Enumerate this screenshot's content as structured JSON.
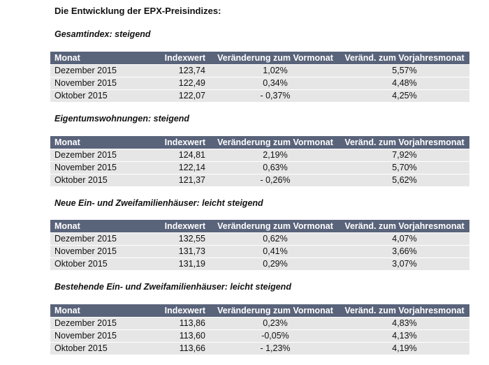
{
  "title": "Die Entwicklung der EPX-Preisindizes:",
  "columns": {
    "month": "Monat",
    "index": "Indexwert",
    "mom": "Veränderung zum Vormonat",
    "yoy": "Veränd. zum Vorjahresmonat"
  },
  "sections": [
    {
      "heading": "Gesamtindex: steigend",
      "rows": [
        {
          "month": "Dezember 2015",
          "index": "123,74",
          "mom": "1,02%",
          "yoy": "5,57%"
        },
        {
          "month": "November 2015",
          "index": "122,49",
          "mom": "0,34%",
          "yoy": "4,48%"
        },
        {
          "month": "Oktober 2015",
          "index": "122,07",
          "mom": "- 0,37%",
          "yoy": "4,25%"
        }
      ]
    },
    {
      "heading": "Eigentumswohnungen: steigend",
      "rows": [
        {
          "month": "Dezember 2015",
          "index": "124,81",
          "mom": "2,19%",
          "yoy": "7,92%"
        },
        {
          "month": "November 2015",
          "index": "122,14",
          "mom": "0,63%",
          "yoy": "5,70%"
        },
        {
          "month": "Oktober 2015",
          "index": "121,37",
          "mom": "- 0,26%",
          "yoy": "5,62%"
        }
      ]
    },
    {
      "heading": "Neue Ein- und Zweifamilienhäuser: leicht steigend",
      "rows": [
        {
          "month": "Dezember 2015",
          "index": "132,55",
          "mom": "0,62%",
          "yoy": "4,07%"
        },
        {
          "month": "November 2015",
          "index": "131,73",
          "mom": "0,41%",
          "yoy": "3,66%"
        },
        {
          "month": "Oktober 2015",
          "index": "131,19",
          "mom": "0,29%",
          "yoy": "3,07%"
        }
      ]
    },
    {
      "heading": "Bestehende Ein- und Zweifamilienhäuser: leicht steigend",
      "rows": [
        {
          "month": "Dezember 2015",
          "index": "113,86",
          "mom": "0,23%",
          "yoy": "4,83%"
        },
        {
          "month": "November 2015",
          "index": "113,60",
          "mom": "-0,05%",
          "yoy": "4,13%"
        },
        {
          "month": "Oktober 2015",
          "index": "113,66",
          "mom": "- 1,23%",
          "yoy": "4,19%"
        }
      ]
    }
  ]
}
